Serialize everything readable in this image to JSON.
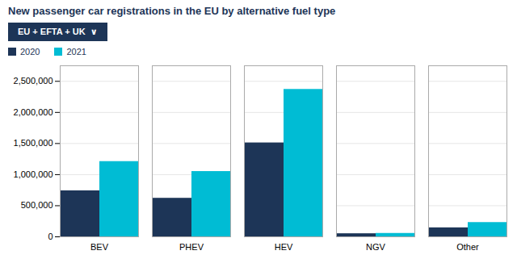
{
  "chart_data": {
    "type": "bar",
    "title": "New passenger car registrations in the EU by alternative fuel type",
    "annotations": [
      "EU + EFTA + UK  ∨"
    ],
    "categories": [
      "BEV",
      "PHEV",
      "HEV",
      "NGV",
      "Other"
    ],
    "series": [
      {
        "name": "2020",
        "color": "#1d3557",
        "values": [
          740000,
          620000,
          1510000,
          50000,
          145000
        ]
      },
      {
        "name": "2021",
        "color": "#00bcd4",
        "values": [
          1210000,
          1050000,
          2370000,
          55000,
          230000
        ]
      }
    ],
    "ylim": [
      0,
      2750000
    ],
    "yticks": [
      0,
      {
        "value": 500000,
        "label": "500,000"
      },
      {
        "value": 1000000,
        "label": "1,000,000"
      },
      {
        "value": 1500000,
        "label": "1,500,000"
      },
      {
        "value": 2000000,
        "label": "2,000,000"
      },
      {
        "value": 2500000,
        "label": "2,500,000"
      }
    ],
    "grid": true,
    "legend": "top-left"
  }
}
